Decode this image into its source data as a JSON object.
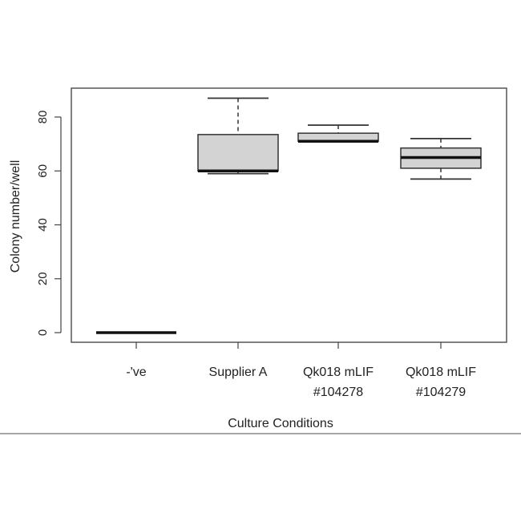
{
  "chart_data": {
    "type": "boxplot",
    "title": "",
    "xlabel": "Culture Conditions",
    "ylabel": "Colony number/well",
    "ylim": [
      -3,
      93
    ],
    "yticks": [
      0,
      20,
      40,
      60,
      80
    ],
    "grid": false,
    "categories": [
      {
        "label": [
          "-'ve"
        ],
        "min": 0,
        "q1": 0,
        "median": 0,
        "q3": 0,
        "max": 0
      },
      {
        "label": [
          "Supplier A"
        ],
        "min": 59,
        "q1": 60,
        "median": 60,
        "q3": 73.5,
        "max": 87
      },
      {
        "label": [
          "Qk018 mLIF",
          "#104278"
        ],
        "min": 71,
        "q1": 71,
        "median": 71,
        "q3": 74,
        "max": 77
      },
      {
        "label": [
          "Qk018 mLIF",
          "#104279"
        ],
        "min": 57,
        "q1": 61,
        "median": 65,
        "q3": 68.5,
        "max": 72
      }
    ],
    "colors": {
      "box_fill": "#d3d3d3",
      "stroke": "#222222",
      "frame": "#555555"
    }
  }
}
